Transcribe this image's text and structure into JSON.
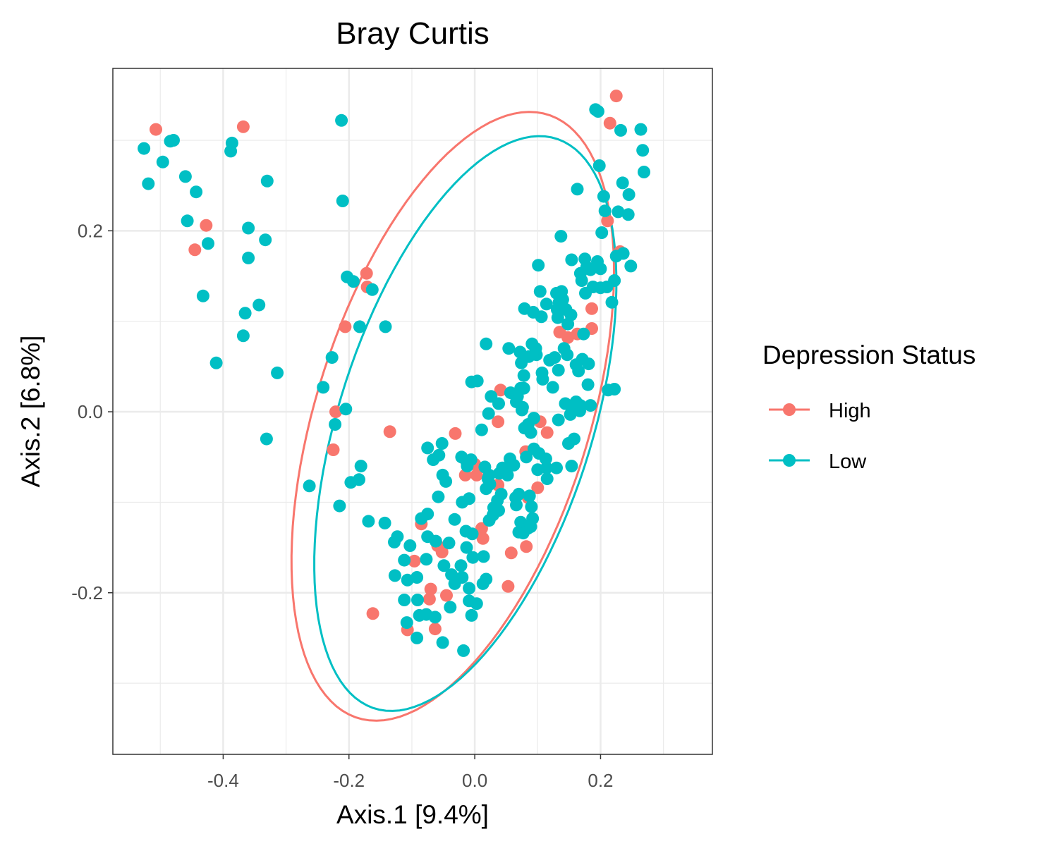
{
  "chart_data": {
    "type": "scatter",
    "title": "Bray Curtis",
    "xlabel": "Axis.1   [9.4%]",
    "ylabel": "Axis.2   [6.8%]",
    "xlim": [
      -0.5754,
      0.3778
    ],
    "ylim": [
      -0.3786,
      0.3795
    ],
    "x_ticks": [
      -0.4,
      -0.2,
      0.0,
      0.2
    ],
    "x_tick_labels": [
      "-0.4",
      "-0.2",
      "0.0",
      "0.2"
    ],
    "y_ticks": [
      -0.2,
      0.0,
      0.2
    ],
    "y_tick_labels": [
      "-0.2",
      "0.0",
      "0.2"
    ],
    "grid": true,
    "legend": {
      "title": "Depression Status",
      "position": "right"
    },
    "colors": {
      "High": "#F8766D",
      "Low": "#00BFC4"
    },
    "series": [
      {
        "name": "High",
        "color": "#F8766D",
        "points": [
          [
            -0.507,
            0.312
          ],
          [
            -0.368,
            0.315
          ],
          [
            0.225,
            0.349
          ],
          [
            0.215,
            0.319
          ],
          [
            -0.427,
            0.206
          ],
          [
            -0.445,
            0.179
          ],
          [
            0.211,
            0.211
          ],
          [
            0.231,
            0.177
          ],
          [
            -0.172,
            0.153
          ],
          [
            -0.171,
            0.138
          ],
          [
            -0.206,
            0.094
          ],
          [
            0.186,
            0.114
          ],
          [
            0.135,
            0.088
          ],
          [
            0.148,
            0.082
          ],
          [
            0.163,
            0.086
          ],
          [
            0.186,
            0.092
          ],
          [
            0.041,
            0.024
          ],
          [
            -0.221,
            0.0
          ],
          [
            0.037,
            -0.011
          ],
          [
            0.104,
            -0.011
          ],
          [
            -0.135,
            -0.022
          ],
          [
            -0.031,
            -0.024
          ],
          [
            0.115,
            -0.023
          ],
          [
            -0.225,
            -0.042
          ],
          [
            0.0,
            -0.058
          ],
          [
            0.081,
            -0.044
          ],
          [
            -0.015,
            -0.07
          ],
          [
            0.003,
            -0.07
          ],
          [
            0.037,
            -0.081
          ],
          [
            0.1,
            -0.084
          ],
          [
            0.085,
            -0.095
          ],
          [
            -0.085,
            -0.124
          ],
          [
            0.011,
            -0.129
          ],
          [
            0.013,
            -0.14
          ],
          [
            0.082,
            -0.149
          ],
          [
            -0.059,
            -0.148
          ],
          [
            -0.052,
            -0.155
          ],
          [
            -0.096,
            -0.165
          ],
          [
            0.058,
            -0.156
          ],
          [
            -0.07,
            -0.196
          ],
          [
            0.053,
            -0.193
          ],
          [
            -0.045,
            -0.203
          ],
          [
            -0.072,
            -0.207
          ],
          [
            -0.162,
            -0.223
          ],
          [
            -0.107,
            -0.241
          ],
          [
            -0.063,
            -0.24
          ]
        ],
        "ellipse": {
          "cx": -0.035,
          "cy": -0.005,
          "semi_major": 0.37,
          "semi_minor": 0.205,
          "angle_deg": 60
        }
      },
      {
        "name": "Low",
        "color": "#00BFC4",
        "points": [
          [
            -0.526,
            0.291
          ],
          [
            -0.519,
            0.252
          ],
          [
            -0.496,
            0.276
          ],
          [
            -0.484,
            0.299
          ],
          [
            -0.479,
            0.3
          ],
          [
            -0.46,
            0.26
          ],
          [
            -0.457,
            0.211
          ],
          [
            -0.443,
            0.243
          ],
          [
            -0.424,
            0.186
          ],
          [
            -0.432,
            0.128
          ],
          [
            -0.411,
            0.054
          ],
          [
            -0.386,
            0.297
          ],
          [
            -0.388,
            0.288
          ],
          [
            -0.36,
            0.203
          ],
          [
            -0.36,
            0.17
          ],
          [
            -0.33,
            0.255
          ],
          [
            -0.333,
            0.19
          ],
          [
            -0.343,
            0.118
          ],
          [
            -0.365,
            0.109
          ],
          [
            -0.368,
            0.084
          ],
          [
            -0.314,
            0.043
          ],
          [
            -0.331,
            -0.03
          ],
          [
            -0.212,
            0.322
          ],
          [
            -0.21,
            0.233
          ],
          [
            -0.203,
            0.149
          ],
          [
            -0.193,
            0.144
          ],
          [
            -0.163,
            0.135
          ],
          [
            -0.183,
            0.094
          ],
          [
            -0.142,
            0.094
          ],
          [
            -0.227,
            0.06
          ],
          [
            -0.241,
            0.027
          ],
          [
            -0.205,
            0.003
          ],
          [
            -0.222,
            -0.014
          ],
          [
            -0.181,
            -0.06
          ],
          [
            -0.197,
            -0.078
          ],
          [
            -0.184,
            -0.075
          ],
          [
            -0.263,
            -0.082
          ],
          [
            -0.215,
            -0.104
          ],
          [
            -0.169,
            -0.121
          ],
          [
            -0.143,
            -0.123
          ],
          [
            -0.123,
            -0.138
          ],
          [
            -0.128,
            -0.144
          ],
          [
            -0.112,
            -0.164
          ],
          [
            -0.127,
            -0.181
          ],
          [
            -0.107,
            -0.186
          ],
          [
            -0.112,
            -0.208
          ],
          [
            -0.108,
            -0.233
          ],
          [
            -0.092,
            -0.25
          ],
          [
            -0.103,
            -0.148
          ],
          [
            -0.092,
            -0.183
          ],
          [
            -0.091,
            -0.208
          ],
          [
            -0.088,
            -0.225
          ],
          [
            -0.085,
            -0.118
          ],
          [
            -0.075,
            -0.113
          ],
          [
            -0.075,
            -0.138
          ],
          [
            -0.062,
            -0.143
          ],
          [
            -0.077,
            -0.163
          ],
          [
            -0.077,
            -0.224
          ],
          [
            -0.063,
            -0.227
          ],
          [
            -0.049,
            -0.17
          ],
          [
            -0.037,
            -0.18
          ],
          [
            -0.032,
            -0.19
          ],
          [
            -0.039,
            -0.216
          ],
          [
            -0.051,
            -0.255
          ],
          [
            -0.018,
            -0.264
          ],
          [
            -0.075,
            -0.04
          ],
          [
            -0.066,
            -0.053
          ],
          [
            -0.057,
            -0.048
          ],
          [
            -0.052,
            -0.035
          ],
          [
            -0.051,
            -0.07
          ],
          [
            -0.046,
            -0.077
          ],
          [
            -0.058,
            -0.094
          ],
          [
            -0.041,
            -0.145
          ],
          [
            -0.032,
            -0.119
          ],
          [
            -0.021,
            -0.05
          ],
          [
            -0.013,
            -0.055
          ],
          [
            -0.006,
            -0.053
          ],
          [
            -0.012,
            -0.06
          ],
          [
            -0.02,
            -0.1
          ],
          [
            -0.009,
            -0.096
          ],
          [
            -0.014,
            -0.132
          ],
          [
            -0.013,
            -0.15
          ],
          [
            -0.022,
            -0.17
          ],
          [
            -0.004,
            -0.135
          ],
          [
            -0.003,
            -0.161
          ],
          [
            -0.009,
            -0.195
          ],
          [
            -0.02,
            -0.183
          ],
          [
            -0.009,
            -0.209
          ],
          [
            -0.005,
            -0.225
          ],
          [
            0.003,
            -0.212
          ],
          [
            0.014,
            -0.16
          ],
          [
            0.013,
            -0.19
          ],
          [
            0.018,
            -0.185
          ],
          [
            0.016,
            -0.061
          ],
          [
            0.023,
            -0.07
          ],
          [
            0.021,
            -0.074
          ],
          [
            0.024,
            -0.08
          ],
          [
            0.018,
            -0.085
          ],
          [
            0.023,
            -0.12
          ],
          [
            0.029,
            -0.114
          ],
          [
            0.03,
            -0.106
          ],
          [
            0.036,
            -0.098
          ],
          [
            0.038,
            -0.109
          ],
          [
            0.042,
            -0.091
          ],
          [
            0.039,
            -0.068
          ],
          [
            0.044,
            -0.062
          ],
          [
            0.056,
            -0.052
          ],
          [
            0.052,
            -0.07
          ],
          [
            0.062,
            -0.059
          ],
          [
            0.065,
            -0.095
          ],
          [
            0.07,
            -0.091
          ],
          [
            0.066,
            -0.103
          ],
          [
            0.073,
            -0.122
          ],
          [
            0.076,
            -0.125
          ],
          [
            0.07,
            -0.133
          ],
          [
            0.077,
            -0.134
          ],
          [
            0.084,
            -0.129
          ],
          [
            0.089,
            -0.127
          ],
          [
            0.092,
            -0.118
          ],
          [
            0.09,
            -0.105
          ],
          [
            0.087,
            -0.093
          ],
          [
            -0.005,
            0.033
          ],
          [
            0.004,
            0.034
          ],
          [
            0.018,
            0.075
          ],
          [
            0.026,
            0.017
          ],
          [
            0.022,
            -0.002
          ],
          [
            0.011,
            -0.02
          ],
          [
            0.038,
            0.009
          ],
          [
            0.057,
            0.021
          ],
          [
            0.068,
            0.017
          ],
          [
            0.078,
            0.026
          ],
          [
            0.075,
            0.002
          ],
          [
            0.079,
            -0.018
          ],
          [
            0.089,
            -0.023
          ],
          [
            0.082,
            -0.05
          ],
          [
            0.094,
            -0.041
          ],
          [
            0.102,
            -0.046
          ],
          [
            0.1,
            -0.064
          ],
          [
            0.114,
            -0.062
          ],
          [
            0.115,
            -0.074
          ],
          [
            0.113,
            -0.052
          ],
          [
            0.13,
            -0.062
          ],
          [
            0.149,
            -0.035
          ],
          [
            0.158,
            -0.03
          ],
          [
            0.154,
            -0.06
          ],
          [
            0.133,
            -0.009
          ],
          [
            0.144,
            0.009
          ],
          [
            0.152,
            -0.003
          ],
          [
            0.157,
            0.003
          ],
          [
            0.161,
            0.011
          ],
          [
            0.124,
            0.027
          ],
          [
            0.119,
            0.057
          ],
          [
            0.127,
            0.06
          ],
          [
            0.133,
            0.046
          ],
          [
            0.142,
            0.07
          ],
          [
            0.147,
            0.063
          ],
          [
            0.161,
            0.052
          ],
          [
            0.165,
            0.045
          ],
          [
            0.171,
            0.058
          ],
          [
            0.173,
            0.086
          ],
          [
            0.181,
            0.053
          ],
          [
            0.18,
            0.03
          ],
          [
            0.184,
            0.007
          ],
          [
            0.168,
            0.007
          ],
          [
            0.167,
            0.001
          ],
          [
            0.106,
            0.105
          ],
          [
            0.108,
            0.036
          ],
          [
            0.107,
            0.043
          ],
          [
            0.098,
            0.063
          ],
          [
            0.097,
            0.07
          ],
          [
            0.091,
            0.075
          ],
          [
            0.086,
            0.061
          ],
          [
            0.078,
            0.04
          ],
          [
            0.074,
            0.054
          ],
          [
            0.072,
            0.066
          ],
          [
            0.073,
            0.026
          ],
          [
            0.076,
            0.005
          ],
          [
            0.094,
            -0.007
          ],
          [
            0.085,
            -0.014
          ],
          [
            0.066,
            0.011
          ],
          [
            0.079,
            0.114
          ],
          [
            0.093,
            0.11
          ],
          [
            0.101,
            0.162
          ],
          [
            0.104,
            0.133
          ],
          [
            0.114,
            0.119
          ],
          [
            0.13,
            0.131
          ],
          [
            0.134,
            0.121
          ],
          [
            0.131,
            0.113
          ],
          [
            0.132,
            0.104
          ],
          [
            0.138,
            0.133
          ],
          [
            0.14,
            0.124
          ],
          [
            0.145,
            0.113
          ],
          [
            0.148,
            0.097
          ],
          [
            0.153,
            0.107
          ],
          [
            0.137,
            0.194
          ],
          [
            0.154,
            0.168
          ],
          [
            0.168,
            0.153
          ],
          [
            0.175,
            0.169
          ],
          [
            0.17,
            0.145
          ],
          [
            0.176,
            0.131
          ],
          [
            0.178,
            0.16
          ],
          [
            0.184,
            0.157
          ],
          [
            0.188,
            0.138
          ],
          [
            0.195,
            0.166
          ],
          [
            0.2,
            0.137
          ],
          [
            0.2,
            0.158
          ],
          [
            0.21,
            0.138
          ],
          [
            0.218,
            0.121
          ],
          [
            0.222,
            0.145
          ],
          [
            0.202,
            0.198
          ],
          [
            0.228,
            0.221
          ],
          [
            0.244,
            0.218
          ],
          [
            0.235,
            0.253
          ],
          [
            0.245,
            0.24
          ],
          [
            0.225,
            0.172
          ],
          [
            0.236,
            0.175
          ],
          [
            0.248,
            0.161
          ],
          [
            0.212,
            0.024
          ],
          [
            0.222,
            0.025
          ],
          [
            0.205,
            0.238
          ],
          [
            0.198,
            0.272
          ],
          [
            0.163,
            0.246
          ],
          [
            0.207,
            0.222
          ],
          [
            0.192,
            0.334
          ],
          [
            0.196,
            0.332
          ],
          [
            0.232,
            0.311
          ],
          [
            0.264,
            0.312
          ],
          [
            0.267,
            0.289
          ],
          [
            0.269,
            0.265
          ],
          [
            0.054,
            0.07
          ]
        ],
        "ellipse": {
          "cx": -0.015,
          "cy": -0.013,
          "semi_major": 0.35,
          "semi_minor": 0.19,
          "angle_deg": 60
        }
      }
    ]
  }
}
